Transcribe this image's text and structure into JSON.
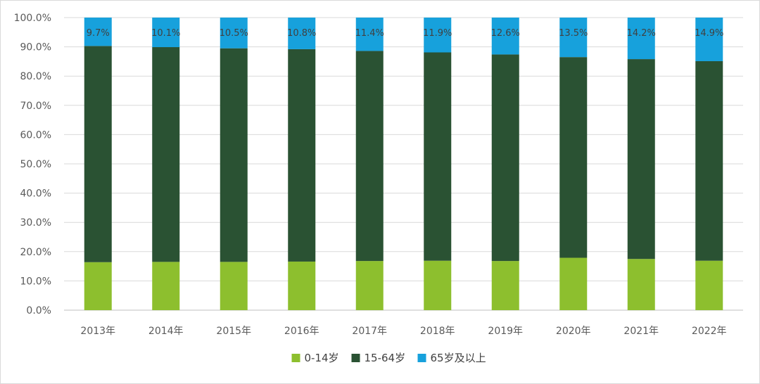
{
  "chart_data": {
    "type": "bar",
    "stacked": true,
    "percent_stacked": true,
    "categories": [
      "2013年",
      "2014年",
      "2015年",
      "2016年",
      "2017年",
      "2018年",
      "2019年",
      "2020年",
      "2021年",
      "2022年"
    ],
    "series": [
      {
        "name": "0-14岁",
        "color": "#8dbf2e",
        "values": [
          16.4,
          16.5,
          16.5,
          16.6,
          16.8,
          16.9,
          16.8,
          17.9,
          17.5,
          16.9
        ]
      },
      {
        "name": "15-64岁",
        "color": "#2a5233",
        "values": [
          73.9,
          73.4,
          73.0,
          72.6,
          71.8,
          71.2,
          70.6,
          68.6,
          68.3,
          68.2
        ]
      },
      {
        "name": "65岁及以上",
        "color": "#17a1dc",
        "values": [
          9.7,
          10.1,
          10.5,
          10.8,
          11.4,
          11.9,
          12.6,
          13.5,
          14.2,
          14.9
        ]
      }
    ],
    "data_labels": [
      "9.7%",
      "10.1%",
      "10.5%",
      "10.8%",
      "11.4%",
      "11.9%",
      "12.6%",
      "13.5%",
      "14.2%",
      "14.9%"
    ],
    "y_ticks": [
      "0.0%",
      "10.0%",
      "20.0%",
      "30.0%",
      "40.0%",
      "50.0%",
      "60.0%",
      "70.0%",
      "80.0%",
      "90.0%",
      "100.0%"
    ],
    "ylim": [
      0,
      100
    ],
    "grid": true,
    "legend_position": "bottom-center"
  }
}
